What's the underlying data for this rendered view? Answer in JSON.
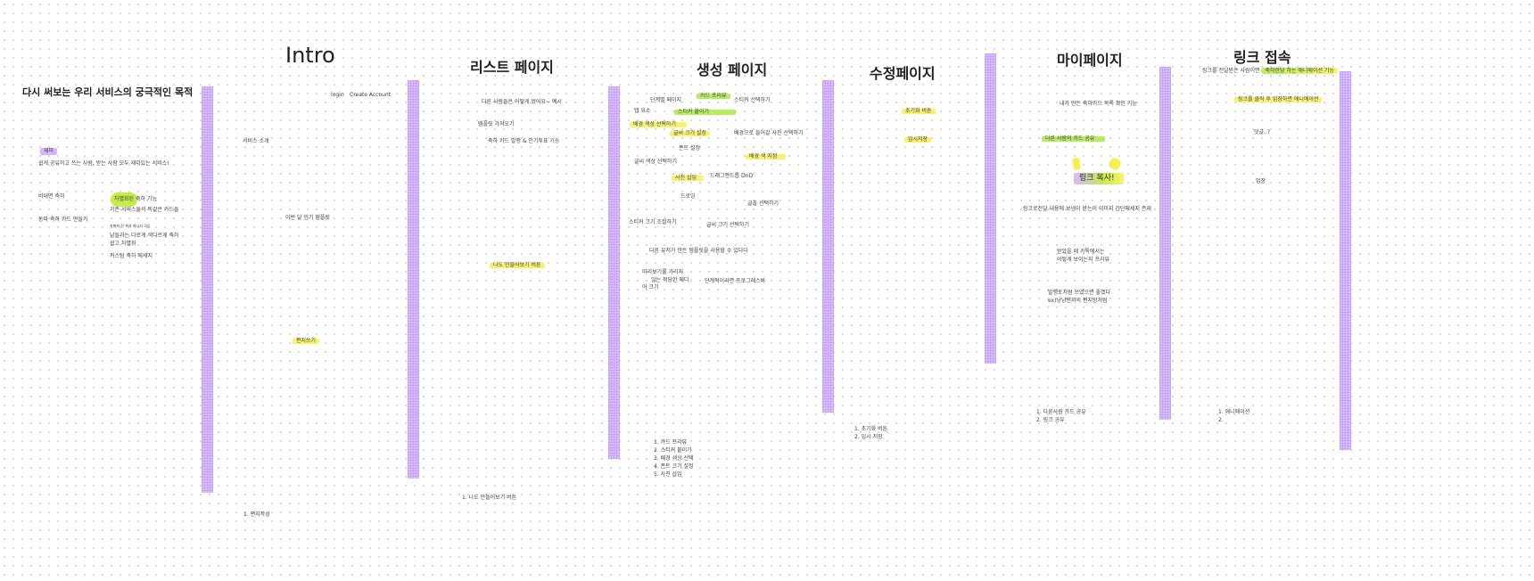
{
  "purpose": {
    "title": "다시 써보는 우리 서비스의 궁극적인 목적",
    "fun": "재미",
    "goal": "쉽게 공유하고 쓰는 사람, 받는 사람 모두 재미있는 서비스!",
    "untact": "비대면 축하",
    "make": "동파 축하 카드 만들기",
    "diff": "차별화된 축하 기능",
    "same": "기존 서비스들의 똑같은 카드들",
    "small": "차별화 된 축하 메시지 모임",
    "other1": "남들과는 다르게 색다르게 축하",
    "other2": "쉽고 차별화",
    "custom": "커스텀 축하 메세지"
  },
  "intro": {
    "title": "Intro",
    "login": "login",
    "create": "Create Account",
    "service": "서비스 소개",
    "popular": "이번 달 인기 템플릿",
    "write": "편지쓰기",
    "list": [
      "1. 편지작성"
    ]
  },
  "listpage": {
    "title": "리스트 페이지",
    "n1": "다른 사람들은 어떻게 썼어요~ 예시",
    "n2": "템플릿 가져오기",
    "n3": "축하 카드 발행 & 인기투표 기능",
    "n4": "나도 만들어보기 버튼",
    "list": [
      "1. 나도 만들어보기 버튼"
    ]
  },
  "create": {
    "title": "생성 페이지",
    "steps": "단계별 페이지",
    "preview": "카드 프리뷰",
    "sticker": "스티커 선택하기",
    "tab": "탭 요소",
    "attach": "스티커 붙이기",
    "bg": "배경 색상 선택하기",
    "size": "글씨 크기 설정",
    "bgphoto": "배경으로 들어갈 사진 선택하기",
    "font": "폰트 설정",
    "bgcolor": "배경 색 지정",
    "color": "글씨 색상 선택하기",
    "photo": "사진 삽입",
    "dnd": "드래그앤드롭 DnD",
    "draw": "드로잉",
    "fontsel": "글꼴 선택하기",
    "stsize": "스티커 크기 조절하기",
    "sizesel": "글씨 크기 선택하기",
    "template": "다른 유저가 만든 템플릿을 사용할 수 있다다",
    "pv1": "미리보기를 가리지",
    "pv2": "않는 적당한 메디",
    "pv3": "어 크기",
    "progress": "단계적이라면 프로그레스바",
    "list": [
      "1. 카드 프리뷰",
      "2. 스티커 붙이기",
      "3. 배경 색상 선택",
      "4. 폰트 크기 설정",
      "5. 사진 삽입"
    ]
  },
  "edit": {
    "title": "수정페이지",
    "reset": "초기화 버튼",
    "temp": "임시저장",
    "list": [
      "1. 초기화 버튼",
      "2. 임시 저장"
    ]
  },
  "mypage": {
    "title": "마이페이지",
    "mine": "내가 만든 축하카드 목록 확인 기능",
    "share": "다른 사람의 카드 공유",
    "copy": "링크 복사!",
    "link": "링크로전달 내용에 보낸이 받는이 이미지 간단메세지 존재",
    "kakao1": "받았을 때 카톡에서는",
    "kakao2": "어떻게 보이는지 프리뷰",
    "pub1": "발행토처럼 쓰였으면 좋겠다",
    "pub2": "ex)냥냥편지의 편지함처럼",
    "list": [
      "1. 다른사람 카드 공유",
      "2. 링크 공유"
    ]
  },
  "linkpage": {
    "title": "링크 접속",
    "recv_a": "링크를 전달받은 사람이면 ",
    "recv_b": "축하한당 하는 애니메이션 기능",
    "click": "링크를 클릭 후 입장하면 애니메이션",
    "comment": "덧글..?",
    "enter": "입장",
    "list": [
      "1. 애니메이션",
      "2."
    ]
  },
  "colors": {
    "strip": "#d9c2ff",
    "yellow": "#f7f46a",
    "green": "#b7ef5a",
    "purple": "#d6b8ff"
  }
}
